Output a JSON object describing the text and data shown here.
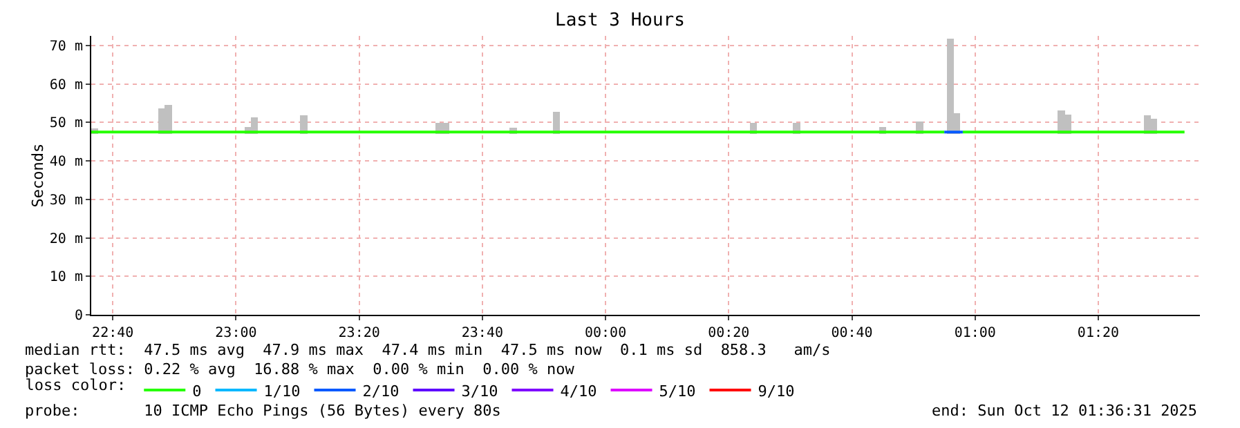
{
  "chart_data": {
    "type": "line",
    "title": "Last 3 Hours",
    "ylabel": "Seconds",
    "legend_title": "loss color:",
    "xlim": [
      "2025-10-11T22:36:30",
      "2025-10-12T01:36:30"
    ],
    "xticks": [
      {
        "value": "2025-10-11T22:40",
        "label": "22:40"
      },
      {
        "value": "2025-10-11T23:00",
        "label": "23:00"
      },
      {
        "value": "2025-10-11T23:20",
        "label": "23:20"
      },
      {
        "value": "2025-10-11T23:40",
        "label": "23:40"
      },
      {
        "value": "2025-10-12T00:00",
        "label": "00:00"
      },
      {
        "value": "2025-10-12T00:20",
        "label": "00:20"
      },
      {
        "value": "2025-10-12T00:40",
        "label": "00:40"
      },
      {
        "value": "2025-10-12T01:00",
        "label": "01:00"
      },
      {
        "value": "2025-10-12T01:20",
        "label": "01:20"
      }
    ],
    "ylim": [
      0,
      72.5
    ],
    "yticks": [
      0,
      {
        "value": 10,
        "label": "10 m"
      },
      {
        "value": 20,
        "label": "20 m"
      },
      {
        "value": 30,
        "label": "30 m"
      },
      {
        "value": 40,
        "label": "40 m"
      },
      {
        "value": 50,
        "label": "50 m"
      },
      {
        "value": 60,
        "label": "60 m"
      },
      {
        "value": 70,
        "label": "70 m"
      }
    ],
    "grid": true,
    "legend": "bottom",
    "series": [
      {
        "type": "bar",
        "color": "#c0c0c0",
        "x": [
          "2025-10-11T22:37",
          "2025-10-11T22:48",
          "2025-10-11T22:49",
          "2025-10-11T23:02",
          "2025-10-11T23:03",
          "2025-10-11T23:11",
          "2025-10-11T23:33",
          "2025-10-11T23:34",
          "2025-10-11T23:45",
          "2025-10-11T23:52",
          "2025-10-12T00:24",
          "2025-10-12T00:31",
          "2025-10-12T00:45",
          "2025-10-12T00:51",
          "2025-10-12T00:56",
          "2025-10-12T00:57",
          "2025-10-12T01:14",
          "2025-10-12T01:15",
          "2025-10-12T01:28",
          "2025-10-12T01:29"
        ],
        "base": [
          47,
          47,
          47,
          47,
          47,
          47,
          47,
          47,
          47,
          47,
          47,
          47,
          47,
          47,
          47,
          47,
          47,
          47,
          47,
          47
        ],
        "values": [
          1.5,
          6.6,
          7.6,
          1.8,
          4.3,
          4.8,
          2.9,
          2.9,
          1.7,
          5.8,
          2.9,
          2.9,
          1.8,
          3.3,
          24.8,
          5.4,
          6.1,
          5.1,
          4.8,
          4
        ]
      },
      {
        "name": "0",
        "color": "#26ff00",
        "x": [
          "2025-10-11T22:36:30",
          "2025-10-12T00:55",
          "2025-10-12T00:56",
          "2025-10-12T00:58",
          "2025-10-12T01:34"
        ],
        "values": [
          47.5,
          47.5,
          null,
          47.5,
          47.5
        ]
      },
      {
        "name": "1/10",
        "color": "#00b8ff",
        "x": [
          null
        ],
        "values": [
          null
        ]
      },
      {
        "name": "2/10",
        "color": "#0059ff",
        "x": [
          "2025-10-12T00:55",
          "2025-10-12T00:58"
        ],
        "values": [
          47.5,
          47.5
        ]
      },
      {
        "name": "3/10",
        "color": "#5e00ff",
        "x": [
          null
        ],
        "values": [
          null
        ]
      },
      {
        "name": "4/10",
        "color": "#7e00ff",
        "x": [
          null
        ],
        "values": [
          null
        ]
      },
      {
        "name": "5/10",
        "color": "#dd00ff",
        "x": [
          null
        ],
        "values": [
          null
        ]
      },
      {
        "name": "9/10",
        "color": "#ff0000",
        "x": [
          null
        ],
        "values": [
          null
        ]
      }
    ],
    "annotations": [
      "median rtt:  47.5 ms avg  47.9 ms max  47.4 ms min  47.5 ms now  0.1 ms sd  858.3   am/s",
      "packet loss: 0.22 % avg  16.88 % max  0.00 % min  0.00 % now",
      "probe:       10 ICMP Echo Pings (56 Bytes) every 80s",
      "end: Sun Oct 12 01:36:31 2025"
    ]
  }
}
